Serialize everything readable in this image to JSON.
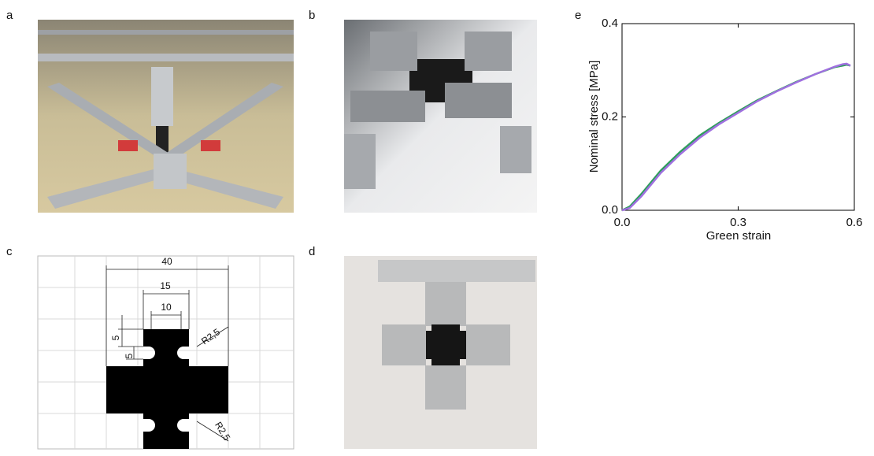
{
  "panels": [
    {
      "label": "a"
    },
    {
      "label": "b"
    },
    {
      "label": "c"
    },
    {
      "label": "d"
    },
    {
      "label": "e"
    }
  ],
  "diagram_c": {
    "dimensions": [
      "40",
      "15",
      "10",
      "5",
      "5",
      "R2,5",
      "R2,5"
    ]
  },
  "chart_data": {
    "type": "line",
    "x_label": "Green strain",
    "y_label": "Nominal stress [MPa]",
    "x": [
      0,
      0.02,
      0.05,
      0.1,
      0.15,
      0.2,
      0.25,
      0.3,
      0.35,
      0.4,
      0.45,
      0.5,
      0.55,
      0.57,
      0.58,
      0.59
    ],
    "series": [
      {
        "color": "#2e9e5b",
        "values": [
          0,
          0.008,
          0.035,
          0.085,
          0.125,
          0.16,
          0.187,
          0.212,
          0.236,
          0.256,
          0.275,
          0.292,
          0.307,
          0.31,
          0.312,
          0.31
        ]
      },
      {
        "color": "#a070e0",
        "values": [
          0,
          0.005,
          0.03,
          0.08,
          0.12,
          0.155,
          0.184,
          0.209,
          0.234,
          0.255,
          0.274,
          0.292,
          0.308,
          0.313,
          0.314,
          0.31
        ]
      }
    ],
    "xlim": [
      0,
      0.6
    ],
    "xticks": [
      {
        "value": 0,
        "label": "0.0"
      },
      0.3,
      0.6
    ],
    "ylim": [
      0,
      0.4
    ],
    "yticks": [
      {
        "value": 0,
        "label": "0.0"
      },
      0.2,
      0.4
    ]
  }
}
